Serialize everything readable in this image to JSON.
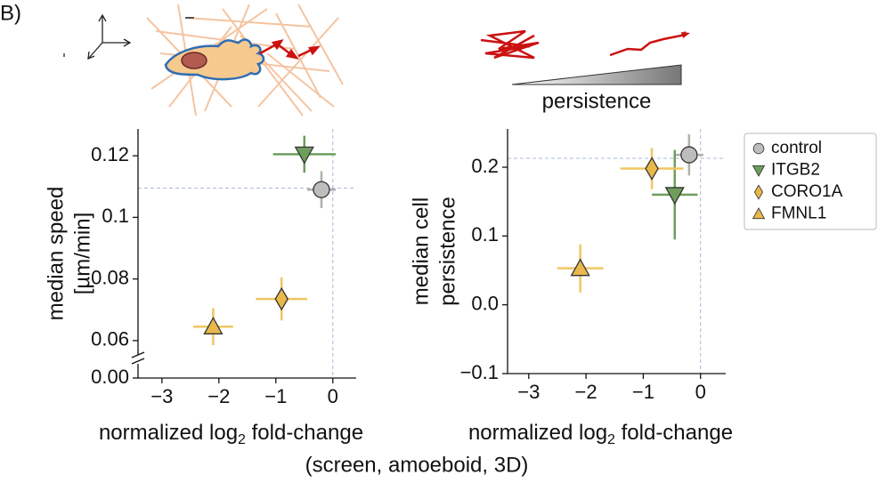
{
  "chart_data": [
    {
      "type": "scatter",
      "ylabel": [
        "median speed",
        "[µm/min]"
      ],
      "xlabel": {
        "pre": "normalized log",
        "sub": "2",
        "post": " fold-change"
      },
      "xlim": [
        -3.42,
        0.41
      ],
      "xticks": [
        {
          "value": -3,
          "label": "−3"
        },
        {
          "value": -2,
          "label": "−2"
        },
        {
          "value": -1,
          "label": "−1"
        },
        0
      ],
      "ylim": [
        0.0565,
        0.1287
      ],
      "yticks": [
        0.06,
        0.08,
        0.1,
        0.12
      ],
      "ybreak_tick": {
        "value": 0,
        "label": "0.00"
      },
      "hline": 0.1095,
      "vline": 0,
      "series": [
        {
          "name": "control",
          "color": "#bdbdbd",
          "err_color": "#b0b0b0",
          "marker": "circle",
          "x": [
            -0.2
          ],
          "values": [
            0.109
          ],
          "xerr": [
            0.25
          ],
          "yerr": [
            0.006
          ]
        },
        {
          "name": "ITGB2",
          "color": "#6e9e5c",
          "err_color": "#6e9e5c",
          "marker": "triangle-down",
          "x": [
            -0.5
          ],
          "values": [
            0.1205
          ],
          "xerr": [
            0.55
          ],
          "yerr": [
            0.006
          ]
        },
        {
          "name": "CORO1A",
          "color": "#e8b84a",
          "err_color": "#f0c662",
          "marker": "diamond",
          "x": [
            -0.9
          ],
          "values": [
            0.0735
          ],
          "xerr": [
            0.45
          ],
          "yerr": [
            0.007
          ]
        },
        {
          "name": "FMNL1",
          "color": "#e8b84a",
          "err_color": "#f0c662",
          "marker": "triangle-up",
          "x": [
            -2.1
          ],
          "values": [
            0.0645
          ],
          "xerr": [
            0.35
          ],
          "yerr": [
            0.006
          ]
        }
      ]
    },
    {
      "type": "scatter",
      "ylabel": [
        "median cell",
        "persistence"
      ],
      "xlabel": {
        "pre": "normalized log",
        "sub": "2",
        "post": " fold-change"
      },
      "subcaption": "(screen, amoeboid, 3D)",
      "xlim": [
        -3.37,
        0.44
      ],
      "xticks": [
        {
          "value": -3,
          "label": "−3"
        },
        {
          "value": -2,
          "label": "−2"
        },
        {
          "value": -1,
          "label": "−1"
        },
        0
      ],
      "ylim": [
        -0.1,
        0.2556
      ],
      "yticks": [
        {
          "value": -0.1,
          "label": "−0.1"
        },
        {
          "value": 0,
          "label": "0.0"
        },
        0.1,
        0.2
      ],
      "hline": 0.213,
      "vline": 0,
      "legend": "right",
      "series": [
        {
          "name": "control",
          "color": "#bdbdbd",
          "err_color": "#b0b0b0",
          "marker": "circle",
          "x": [
            -0.2
          ],
          "values": [
            0.218
          ],
          "xerr": [
            0.25
          ],
          "yerr": [
            0.03
          ]
        },
        {
          "name": "ITGB2",
          "color": "#6e9e5c",
          "err_color": "#6e9e5c",
          "marker": "triangle-down",
          "x": [
            -0.45
          ],
          "values": [
            0.16
          ],
          "xerr": [
            0.4
          ],
          "yerr": [
            0.065
          ]
        },
        {
          "name": "CORO1A",
          "color": "#e8b84a",
          "err_color": "#f0c662",
          "marker": "diamond",
          "x": [
            -0.85
          ],
          "values": [
            0.198
          ],
          "xerr": [
            0.55
          ],
          "yerr": [
            0.03
          ]
        },
        {
          "name": "FMNL1",
          "color": "#e8b84a",
          "err_color": "#f0c662",
          "marker": "triangle-up",
          "x": [
            -2.1
          ],
          "values": [
            0.053
          ],
          "xerr": [
            0.4
          ],
          "yerr": [
            0.035
          ]
        }
      ]
    }
  ],
  "panel_label": "(B)",
  "illustration_label": "persistence"
}
